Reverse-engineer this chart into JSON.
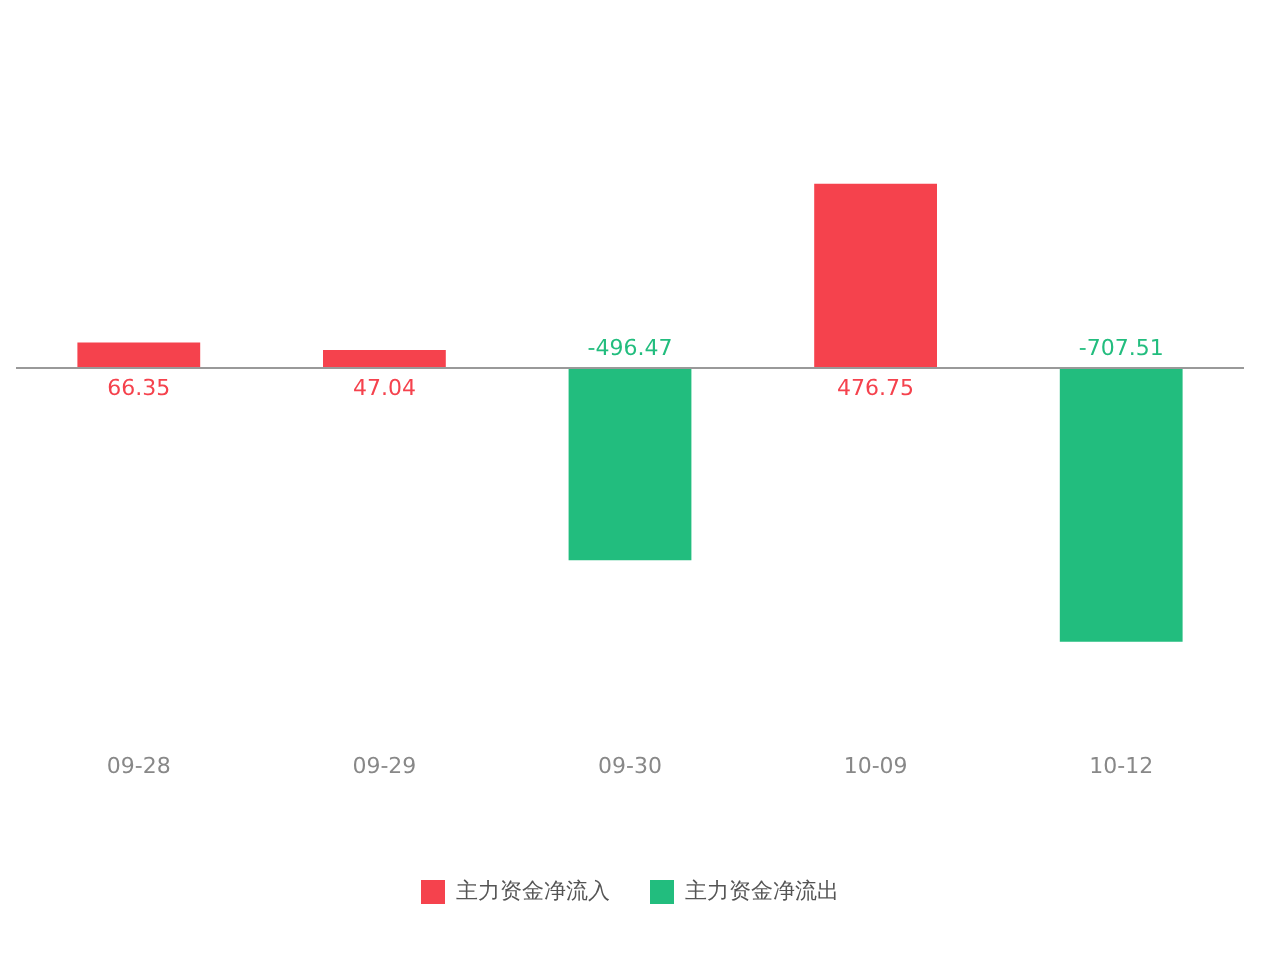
{
  "chart_data": {
    "type": "bar",
    "categories": [
      "09-28",
      "09-29",
      "09-30",
      "10-09",
      "10-12"
    ],
    "series": [
      {
        "name": "主力资金净流入",
        "color": "#f5424d",
        "values": [
          66.35,
          47.04,
          null,
          476.75,
          null
        ]
      },
      {
        "name": "主力资金净流出",
        "color": "#22bd7e",
        "values": [
          null,
          null,
          -496.47,
          null,
          -707.51
        ]
      }
    ],
    "data_labels": true,
    "legend": "bottom",
    "grid": false
  }
}
